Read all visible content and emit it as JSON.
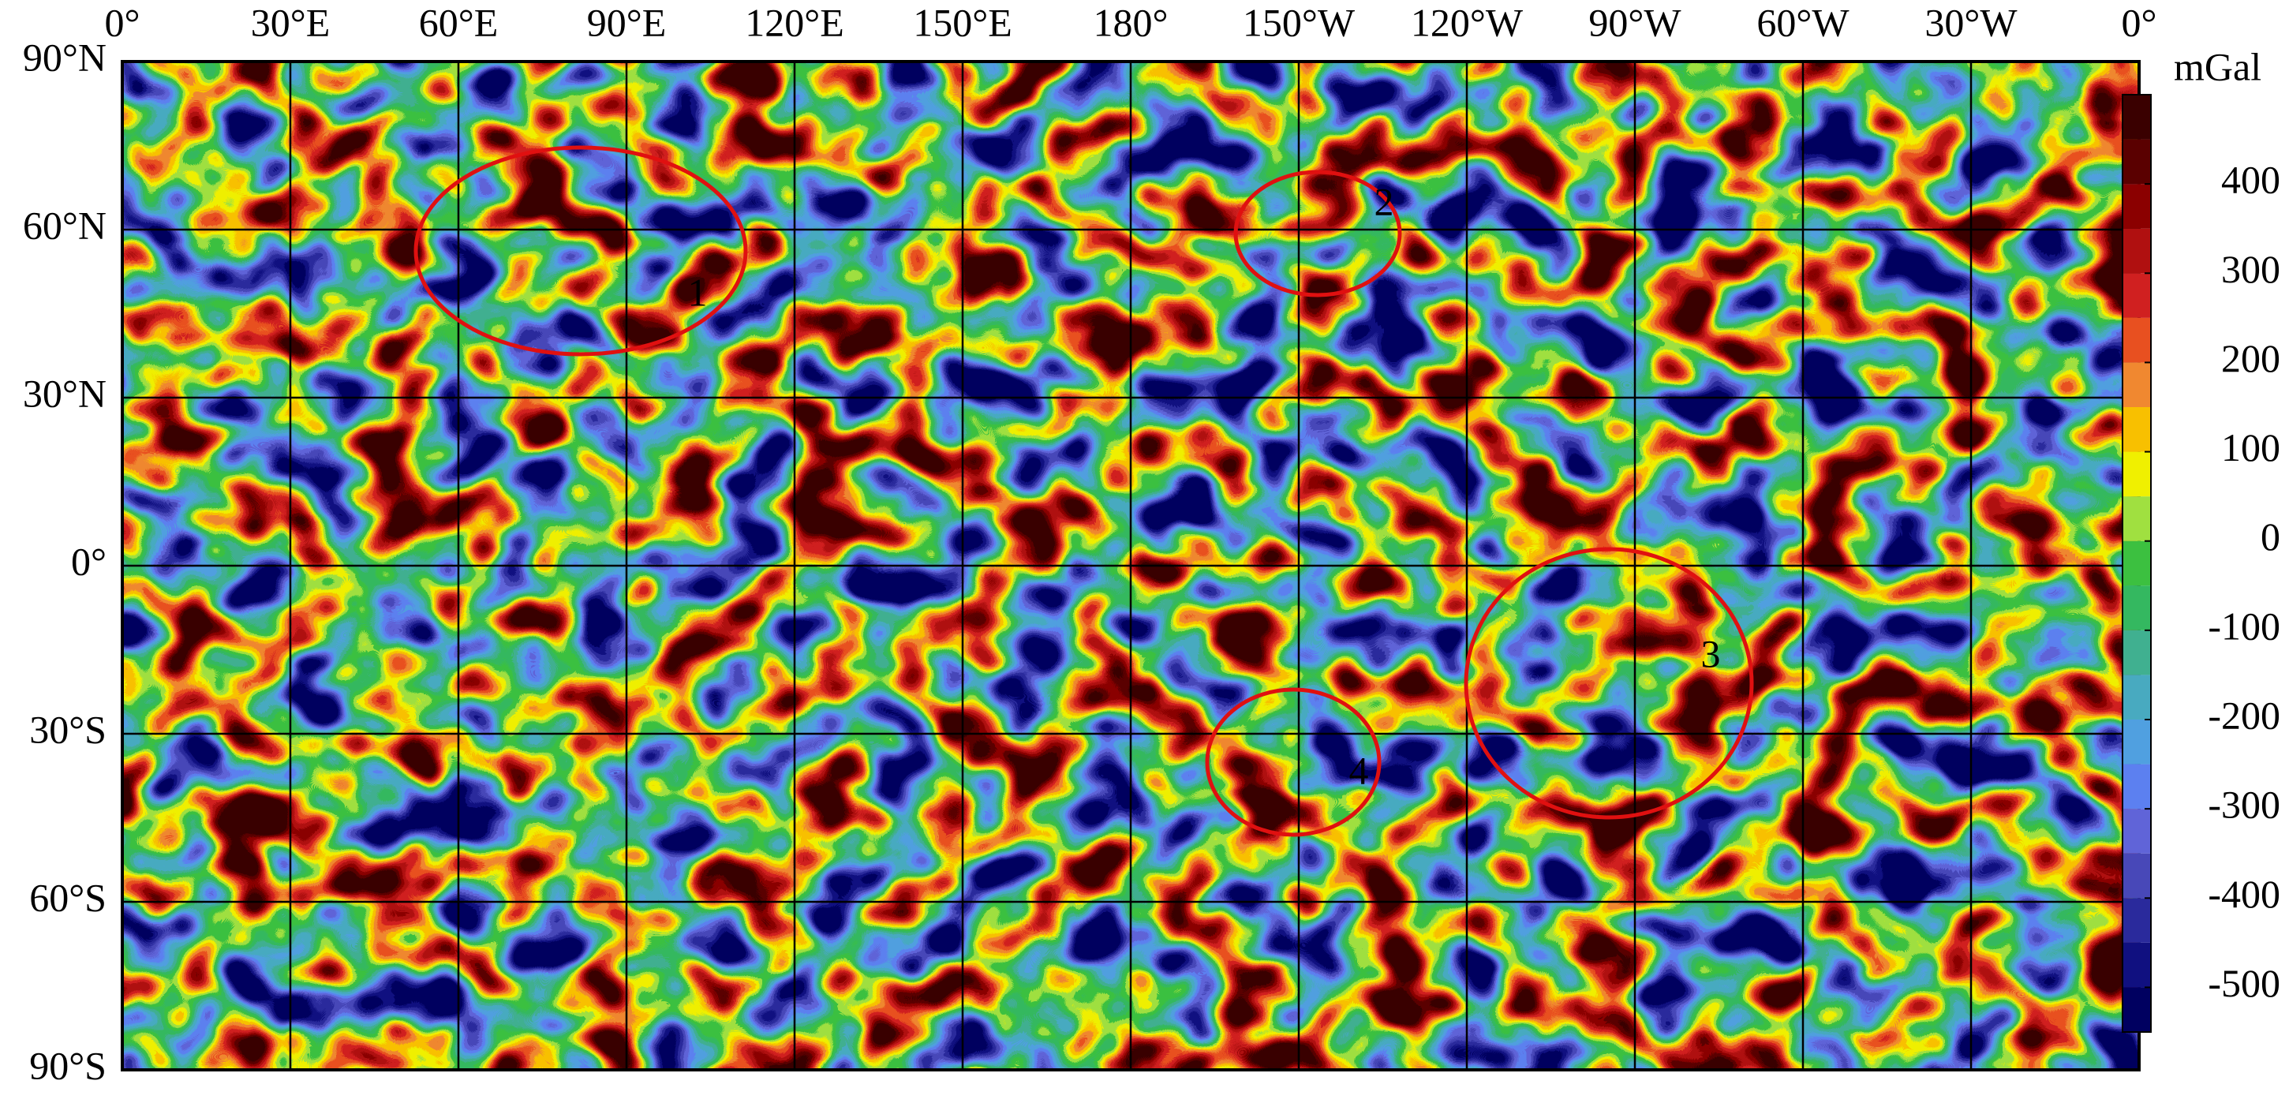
{
  "map": {
    "longitude_labels": [
      "0°",
      "30°E",
      "60°E",
      "90°E",
      "120°E",
      "150°E",
      "180°",
      "150°W",
      "120°W",
      "90°W",
      "60°W",
      "30°W",
      "0°"
    ],
    "latitude_labels": [
      "90°N",
      "60°N",
      "30°N",
      "0°",
      "30°S",
      "60°S",
      "90°S"
    ],
    "annotations": [
      "1",
      "2",
      "3",
      "4"
    ]
  },
  "colorbar": {
    "unit": "mGal",
    "range": [
      -550,
      500
    ],
    "ticks": [
      400,
      300,
      200,
      100,
      0,
      -100,
      -200,
      -300,
      -400,
      -500
    ],
    "colors": [
      "#000060",
      "#101080",
      "#2a2a9c",
      "#4848b8",
      "#6064d8",
      "#5c80f0",
      "#50a0e0",
      "#48aac0",
      "#40b090",
      "#34b860",
      "#3cc040",
      "#a0e040",
      "#f0f000",
      "#f8c000",
      "#f08830",
      "#e85020",
      "#d02020",
      "#b01010",
      "#8b0000",
      "#5a0000",
      "#3a0000"
    ]
  }
}
